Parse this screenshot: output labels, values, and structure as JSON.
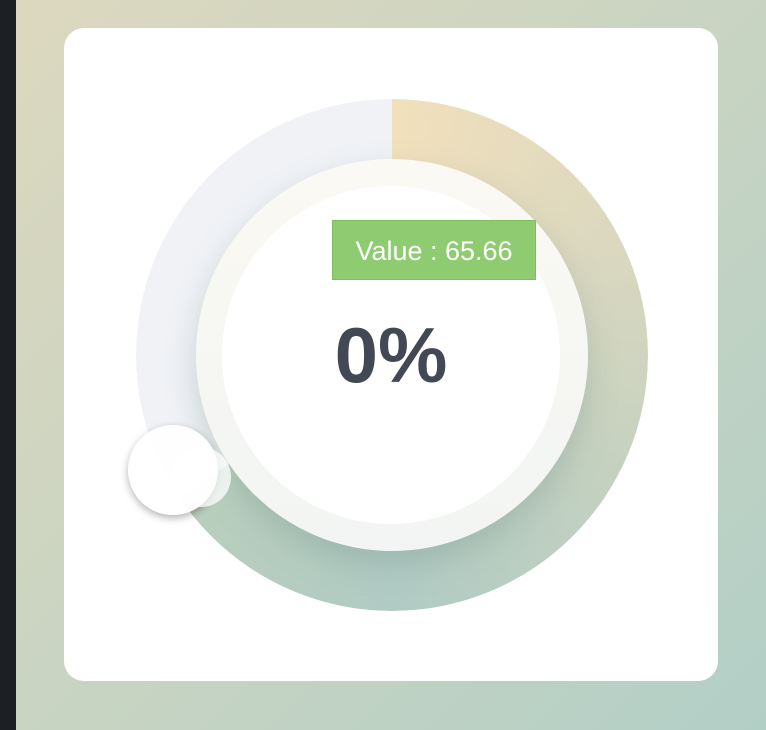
{
  "gauge": {
    "percent_label": "0%",
    "tooltip": "Value : 65.66",
    "value": 65.66,
    "colors": {
      "arc_start": "#f2e0bc",
      "arc_end": "#b0cbc4",
      "track": "#f0f2f6",
      "tooltip_bg": "#8fcb71",
      "text": "#424954"
    }
  }
}
